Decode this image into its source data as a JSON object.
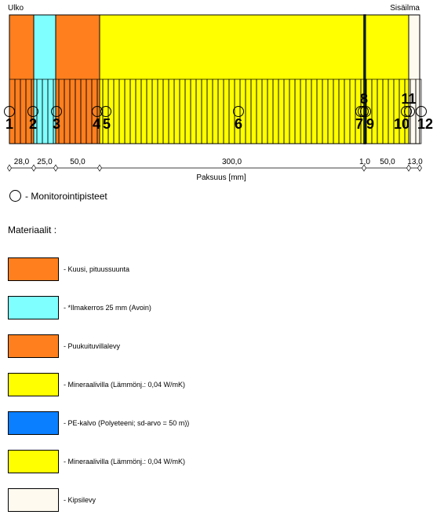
{
  "labels": {
    "outside": "Ulko",
    "inside": "Sisäilma",
    "thickness_axis": "Paksuus [mm]"
  },
  "layers": [
    {
      "thickness": "28,0",
      "thickness_mm": 28,
      "color": "#ff7f1e"
    },
    {
      "thickness": "25,0",
      "thickness_mm": 25,
      "color": "#7fffff"
    },
    {
      "thickness": "50,0",
      "thickness_mm": 50,
      "color": "#ff7f1e"
    },
    {
      "thickness": "300,0",
      "thickness_mm": 300,
      "color": "#ffff00"
    },
    {
      "thickness": "1,0",
      "thickness_mm": 1,
      "color": "#0a7fff"
    },
    {
      "thickness": "50,0",
      "thickness_mm": 50,
      "color": "#ffff00"
    },
    {
      "thickness": "13,0",
      "thickness_mm": 13,
      "color": "#fffaf0"
    }
  ],
  "monitoring_points": [
    "1",
    "2",
    "3",
    "4",
    "5",
    "6",
    "7",
    "8",
    "9",
    "10",
    "11",
    "12"
  ],
  "monitor_legend": "- Monitorointipisteet",
  "materials_title": "Materiaalit :",
  "materials": [
    {
      "label": "- Kuusi, pituussuunta",
      "color": "#ff7f1e"
    },
    {
      "label": "- *Ilmakerros 25 mm (Avoin)",
      "color": "#7fffff"
    },
    {
      "label": "- Puukuituvillalevy",
      "color": "#ff7f1e"
    },
    {
      "label": "- Mineraalivilla (Lämmönj.: 0,04 W/mK)",
      "color": "#ffff00"
    },
    {
      "label": "- PE-kalvo (Polyeteeni; sd-arvo = 50 m))",
      "color": "#0a7fff"
    },
    {
      "label": "- Mineraalivilla (Lämmönj.: 0,04 W/mK)",
      "color": "#ffff00"
    },
    {
      "label": "- Kipsilevy",
      "color": "#fffaf0"
    }
  ]
}
